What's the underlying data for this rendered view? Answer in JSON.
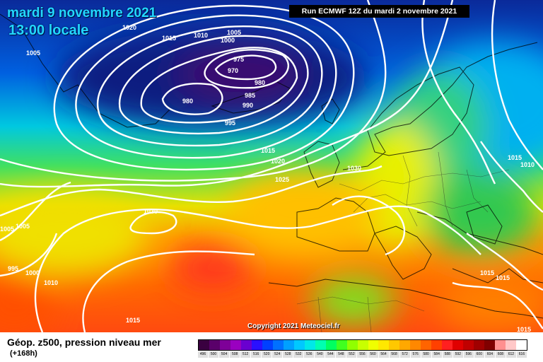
{
  "header": {
    "date": "mardi 9 novembre 2021",
    "local_time": "13:00 locale",
    "run_info": "Run ECMWF 12Z du mardi 2 novembre 2021"
  },
  "footer": {
    "field_title": "Géop. z500, pression niveau mer",
    "lead_time": "(+168h)",
    "copyright": "Copyright 2021 Meteociel.fr"
  },
  "scale": {
    "values": [
      "496",
      "500",
      "504",
      "508",
      "512",
      "516",
      "520",
      "524",
      "528",
      "532",
      "536",
      "540",
      "544",
      "548",
      "552",
      "556",
      "560",
      "564",
      "568",
      "572",
      "576",
      "580",
      "584",
      "588",
      "592",
      "596",
      "600",
      "604",
      "608",
      "612",
      "616"
    ],
    "colors": [
      "#3a0040",
      "#5a006a",
      "#7e0098",
      "#9a00c0",
      "#6a00d0",
      "#2a10ff",
      "#0040ff",
      "#0070ff",
      "#00a0ff",
      "#00c8ff",
      "#00e8e8",
      "#00ffb0",
      "#00ff60",
      "#40ff20",
      "#90ff00",
      "#c8ff00",
      "#f0ff00",
      "#ffe800",
      "#ffc800",
      "#ffa800",
      "#ff8800",
      "#ff6400",
      "#ff4000",
      "#ff2020",
      "#e00000",
      "#c00000",
      "#a00000",
      "#800000",
      "#ff9090",
      "#ffc8c8",
      "#ffffff"
    ]
  },
  "isobar_labels": [
    {
      "text": "1020"
    },
    {
      "text": "1015"
    },
    {
      "text": "1010"
    },
    {
      "text": "1005"
    },
    {
      "text": "1000"
    },
    {
      "text": "1005"
    },
    {
      "text": "975"
    },
    {
      "text": "970"
    },
    {
      "text": "980"
    },
    {
      "text": "985"
    },
    {
      "text": "980"
    },
    {
      "text": "990"
    },
    {
      "text": "995"
    },
    {
      "text": "1015"
    },
    {
      "text": "1020"
    },
    {
      "text": "1025"
    },
    {
      "text": "1030"
    },
    {
      "text": "1030"
    },
    {
      "text": "1005"
    },
    {
      "text": "1005"
    },
    {
      "text": "995"
    },
    {
      "text": "1000"
    },
    {
      "text": "1010"
    },
    {
      "text": "1015"
    },
    {
      "text": "1015"
    },
    {
      "text": "1010"
    },
    {
      "text": "1015"
    },
    {
      "text": "1015"
    },
    {
      "text": "1015"
    }
  ]
}
